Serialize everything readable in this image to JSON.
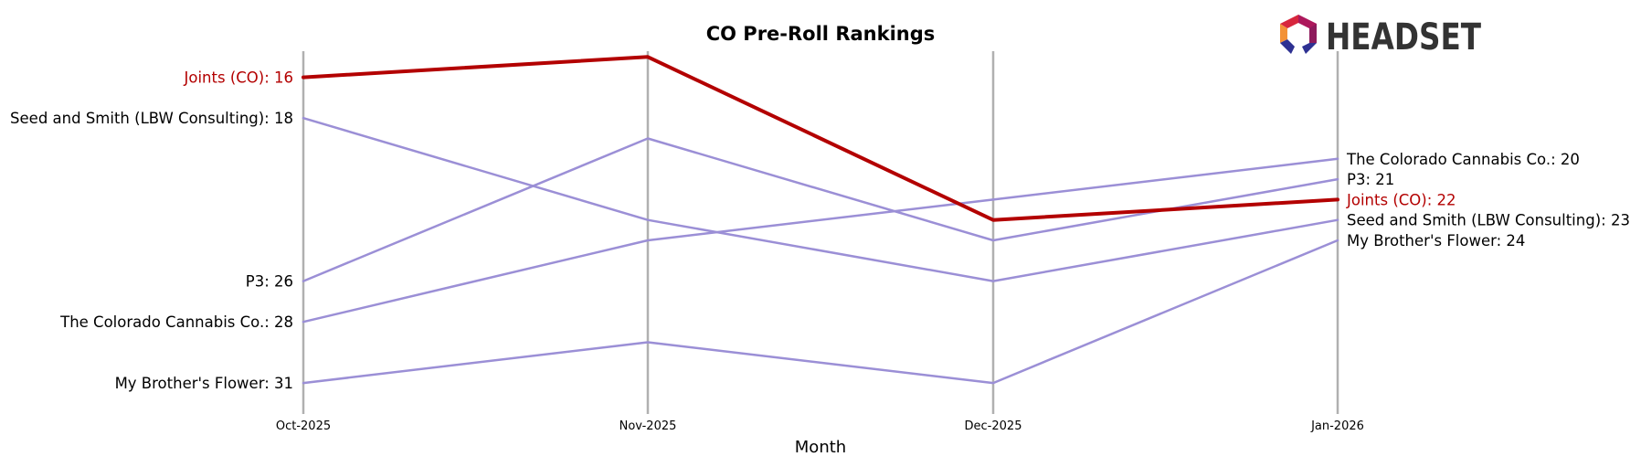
{
  "chart_data": {
    "type": "line",
    "title": "CO Pre-Roll Rankings",
    "xlabel": "Month",
    "ylabel": "",
    "categories": [
      "Oct-2025",
      "Nov-2025",
      "Dec-2025",
      "Jan-2026"
    ],
    "y_axis": {
      "inverted": true,
      "ylim": [
        14.5,
        32.5
      ]
    },
    "grid": "vertical lines at each month",
    "series": [
      {
        "name": "Joints (CO)",
        "values": [
          16,
          15,
          23,
          22
        ],
        "color": "#b30000",
        "highlight": true
      },
      {
        "name": "Seed and Smith (LBW Consulting)",
        "values": [
          18,
          23,
          26,
          23
        ],
        "color": "#9b8fd6"
      },
      {
        "name": "P3",
        "values": [
          26,
          19,
          24,
          21
        ],
        "color": "#9b8fd6"
      },
      {
        "name": "The Colorado Cannabis Co.",
        "values": [
          28,
          24,
          22,
          20
        ],
        "color": "#9b8fd6"
      },
      {
        "name": "My Brother's Flower",
        "values": [
          31,
          29,
          31,
          24
        ],
        "color": "#9b8fd6"
      }
    ],
    "start_labels": [
      "Joints (CO): 16",
      "Seed and Smith (LBW Consulting): 18",
      "P3: 26",
      "The Colorado Cannabis Co.: 28",
      "My Brother's Flower: 31"
    ],
    "end_labels": [
      "Joints (CO): 22",
      "Seed and Smith (LBW Consulting): 23",
      "P3: 21",
      "The Colorado Cannabis Co.: 20",
      "My Brother's Flower: 24"
    ]
  },
  "logo": {
    "text": "HEADSET",
    "icon": "headset-hexagon-logo-icon"
  },
  "colors": {
    "highlight": "#b30000",
    "other": "#9b8fd6",
    "grid": "#b0b0b0",
    "text": "#000000"
  }
}
